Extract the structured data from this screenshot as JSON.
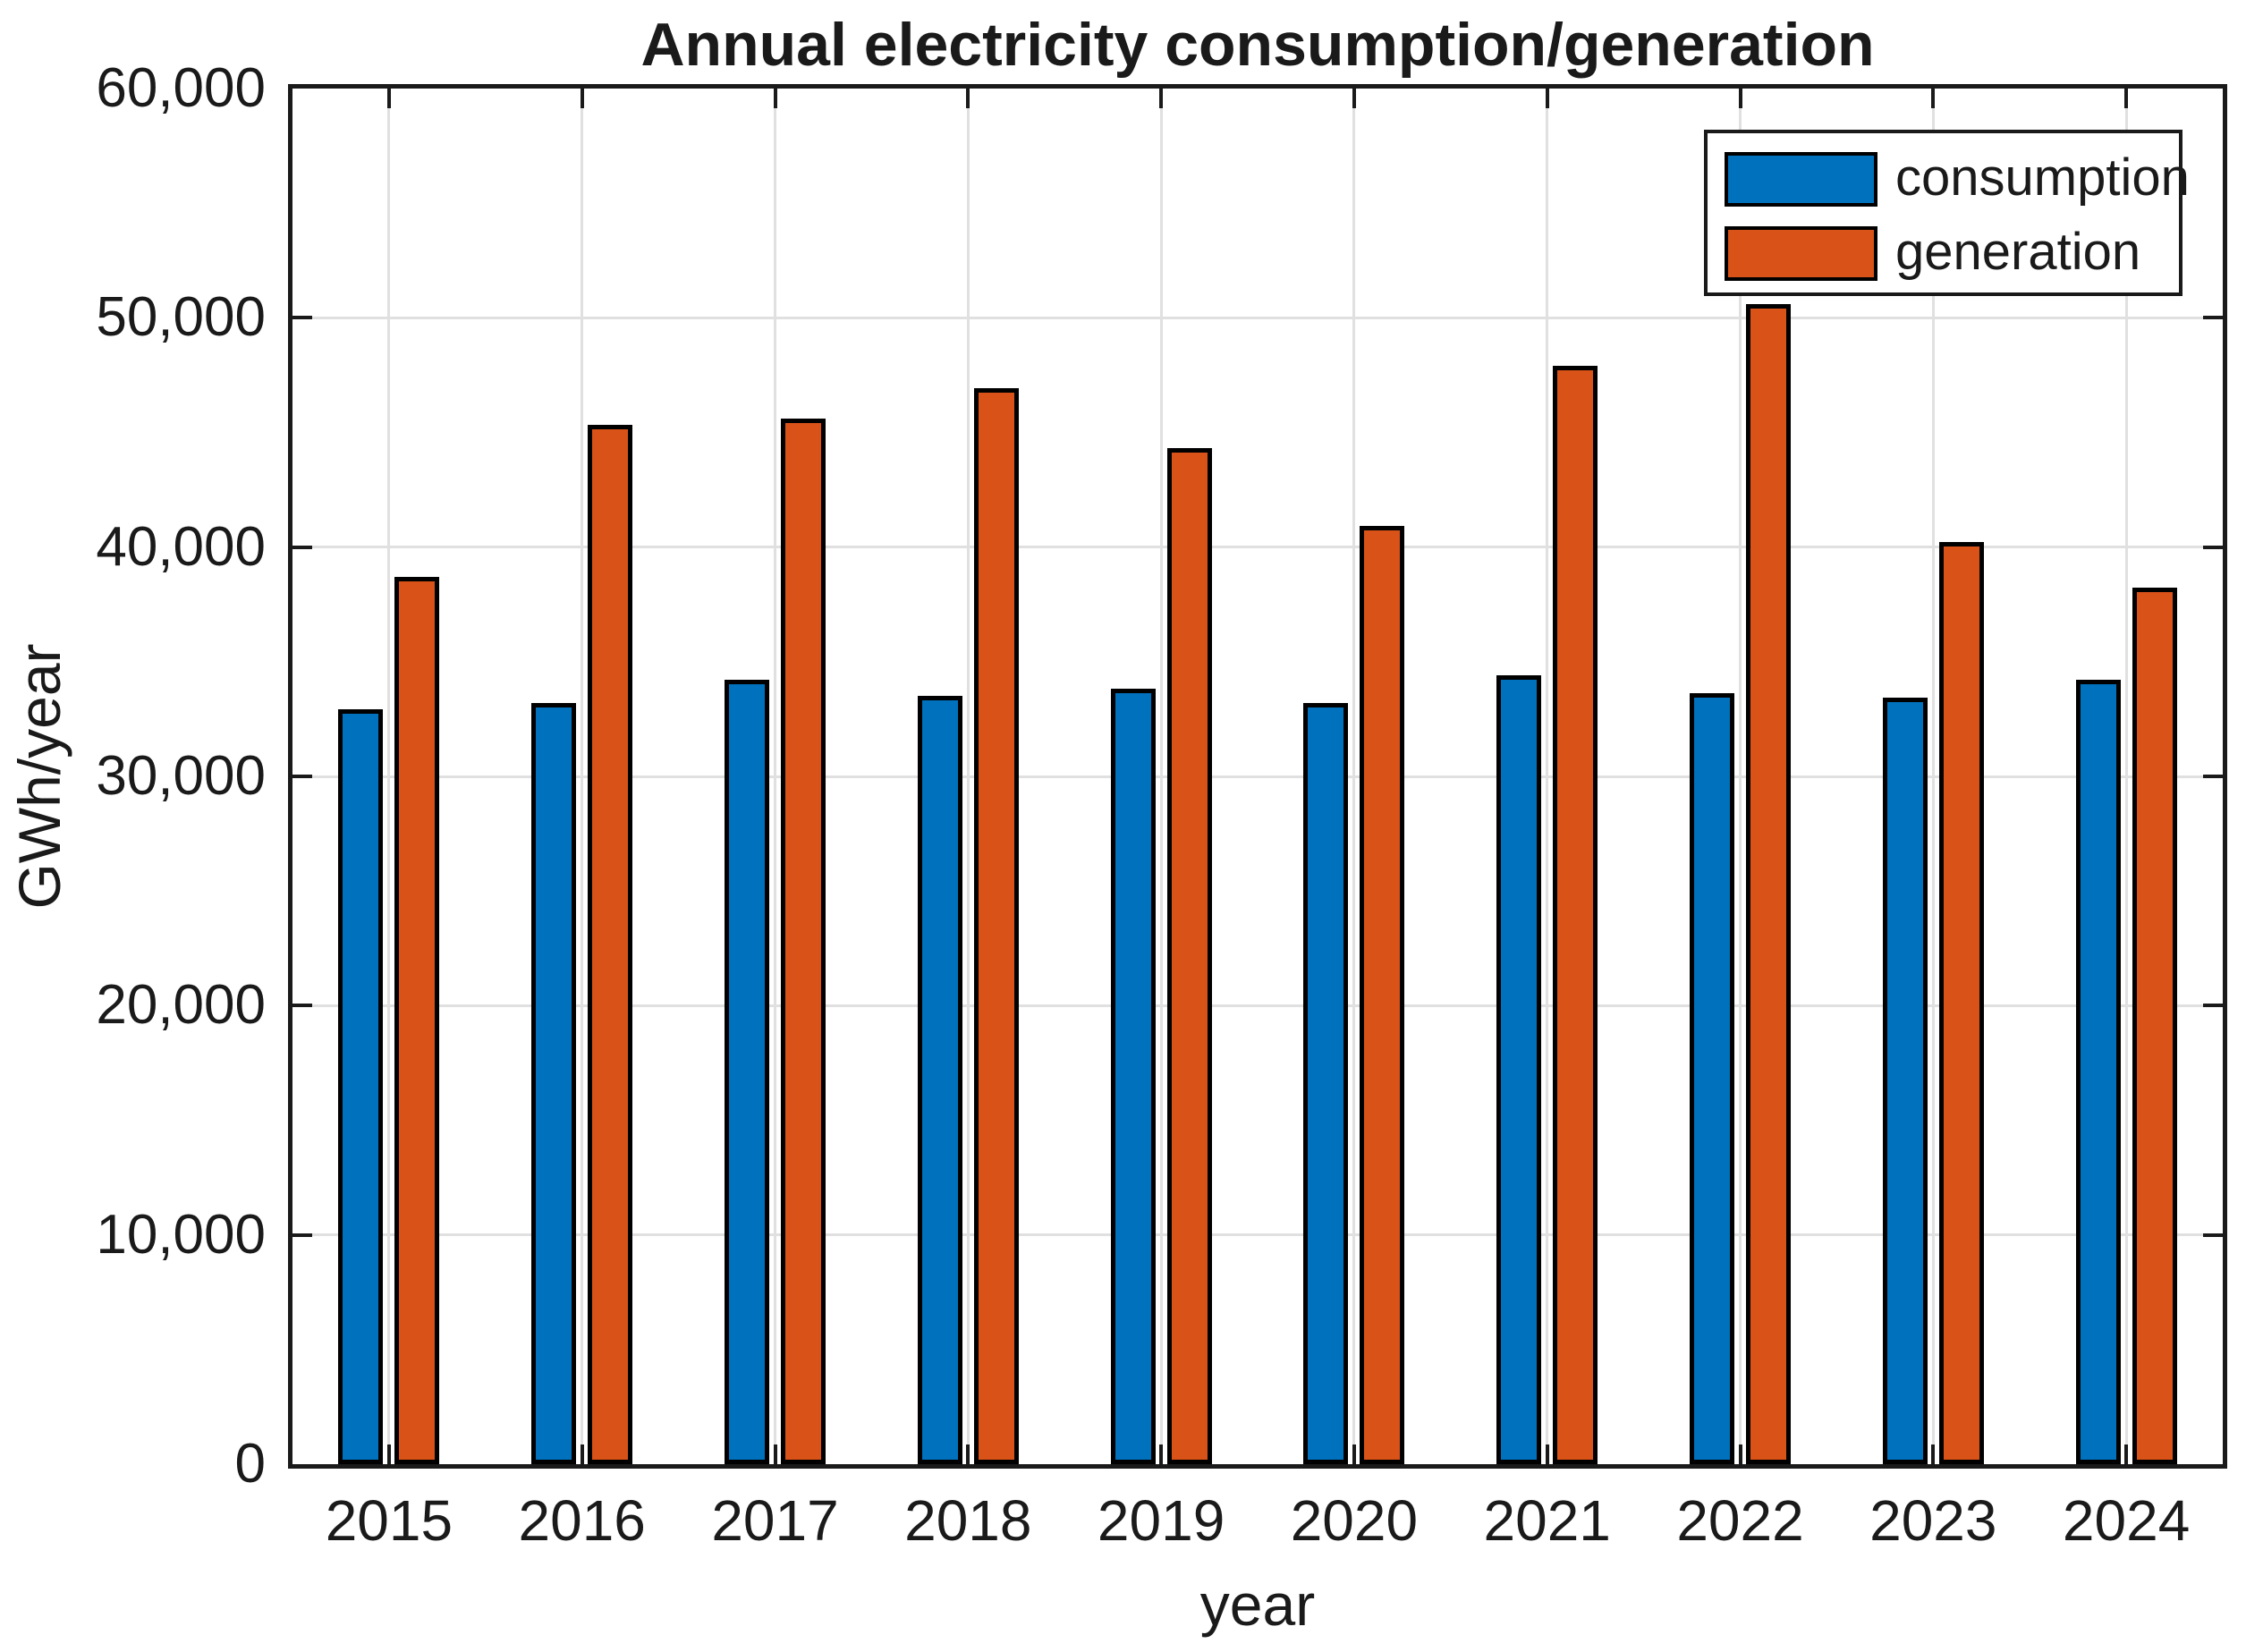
{
  "chart_data": {
    "type": "bar",
    "title": "Annual electricity consumption/generation",
    "xlabel": "year",
    "ylabel": "GWh/year",
    "categories": [
      "2015",
      "2016",
      "2017",
      "2018",
      "2019",
      "2020",
      "2021",
      "2022",
      "2023",
      "2024"
    ],
    "series": [
      {
        "name": "consumption",
        "color": "#0072BD",
        "values": [
          32800,
          33100,
          34100,
          33400,
          33700,
          33100,
          34300,
          33500,
          33300,
          34100
        ]
      },
      {
        "name": "generation",
        "color": "#D95319",
        "values": [
          38600,
          45200,
          45500,
          46800,
          44200,
          40800,
          47800,
          50500,
          40100,
          38100
        ]
      }
    ],
    "ylim": [
      0,
      60000
    ],
    "y_ticks": [
      {
        "value": 0,
        "label": "0"
      },
      {
        "value": 10000,
        "label": "10,000"
      },
      {
        "value": 20000,
        "label": "20,000"
      },
      {
        "value": 30000,
        "label": "30,000"
      },
      {
        "value": 40000,
        "label": "40,000"
      },
      {
        "value": 50000,
        "label": "50,000"
      },
      {
        "value": 60000,
        "label": "60,000"
      }
    ],
    "grid": true,
    "legend_position": "top-right"
  },
  "colors": {
    "axis": "#1a1a1a",
    "grid": "#e0e0e0",
    "bar_edge": "#000000",
    "background": "#ffffff"
  }
}
